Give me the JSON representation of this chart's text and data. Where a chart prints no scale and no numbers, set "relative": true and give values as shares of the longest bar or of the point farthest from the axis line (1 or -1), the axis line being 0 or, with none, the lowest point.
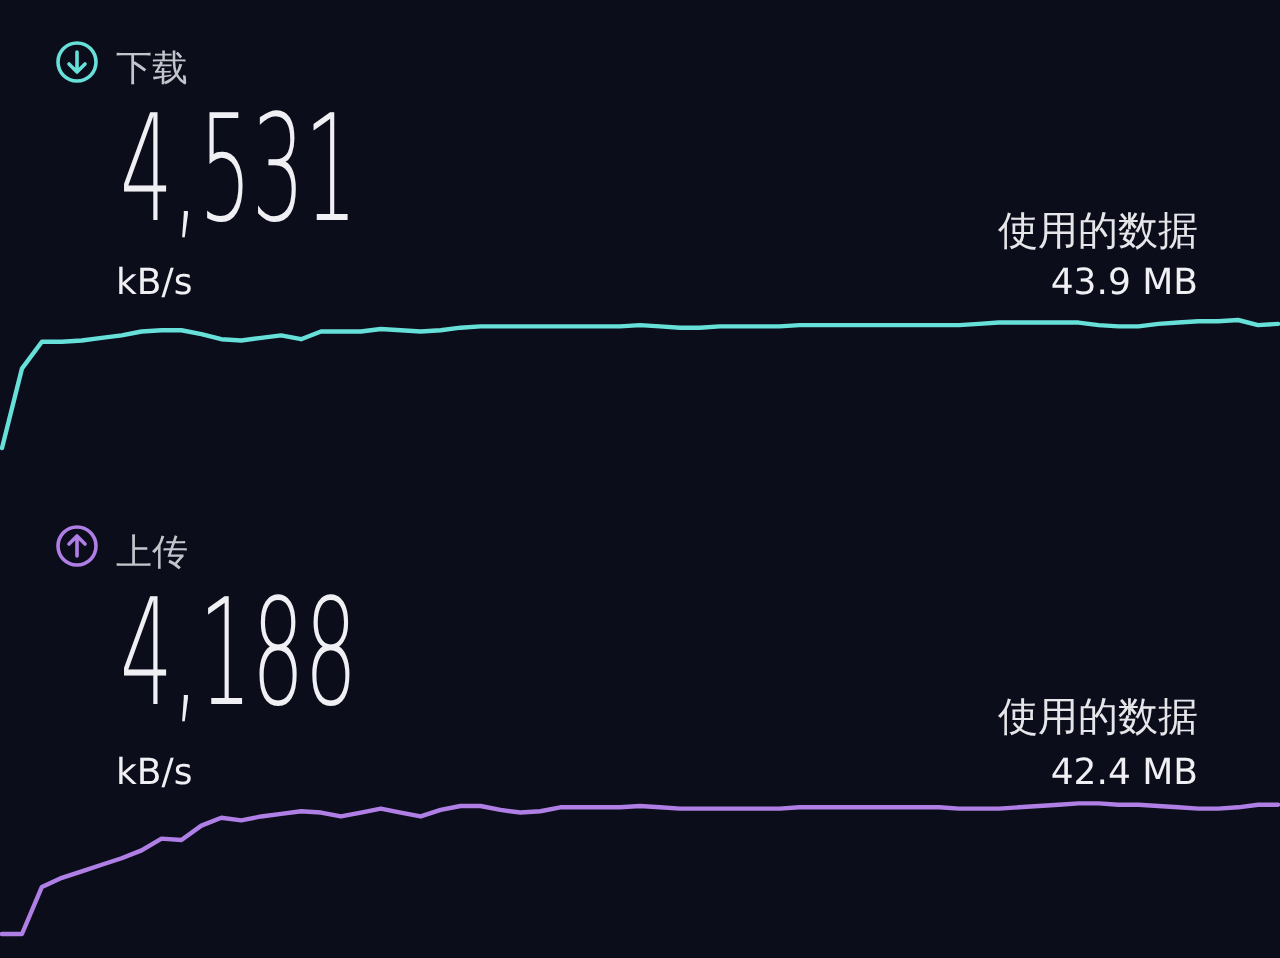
{
  "chart_data": [
    {
      "type": "line",
      "title": "下载",
      "annotations": [
        "4,531",
        "kB/s",
        "使用的数据",
        "43.9 MB"
      ],
      "relative": true,
      "color": "#66e0d8",
      "categories": [
        null,
        null,
        null,
        null,
        null,
        null,
        null,
        null,
        null,
        null,
        null,
        null,
        null,
        null,
        null,
        null,
        null,
        null,
        null,
        null,
        null,
        null,
        null,
        null,
        null,
        null,
        null,
        null,
        null,
        null,
        null,
        null,
        null,
        null,
        null,
        null,
        null,
        null,
        null,
        null,
        null,
        null,
        null,
        null,
        null,
        null,
        null,
        null,
        null,
        null,
        null,
        null,
        null,
        null,
        null,
        null,
        null,
        null,
        null,
        null,
        null,
        null,
        null,
        null,
        null
      ],
      "values": [
        0,
        0.62,
        0.83,
        0.83,
        0.84,
        0.86,
        0.88,
        0.91,
        0.92,
        0.92,
        0.89,
        0.85,
        0.84,
        0.86,
        0.88,
        0.85,
        0.91,
        0.91,
        0.91,
        0.93,
        0.92,
        0.91,
        0.92,
        0.94,
        0.95,
        0.95,
        0.95,
        0.95,
        0.95,
        0.95,
        0.95,
        0.95,
        0.96,
        0.95,
        0.94,
        0.94,
        0.95,
        0.95,
        0.95,
        0.95,
        0.96,
        0.96,
        0.96,
        0.96,
        0.96,
        0.96,
        0.96,
        0.96,
        0.96,
        0.97,
        0.98,
        0.98,
        0.98,
        0.98,
        0.98,
        0.96,
        0.95,
        0.95,
        0.97,
        0.98,
        0.99,
        0.99,
        1,
        0.96,
        0.97
      ]
    },
    {
      "type": "line",
      "title": "上传",
      "annotations": [
        "4,188",
        "kB/s",
        "使用的数据",
        "42.4 MB"
      ],
      "relative": true,
      "color": "#b07fe6",
      "categories": [
        null,
        null,
        null,
        null,
        null,
        null,
        null,
        null,
        null,
        null,
        null,
        null,
        null,
        null,
        null,
        null,
        null,
        null,
        null,
        null,
        null,
        null,
        null,
        null,
        null,
        null,
        null,
        null,
        null,
        null,
        null,
        null,
        null,
        null,
        null,
        null,
        null,
        null,
        null,
        null,
        null,
        null,
        null,
        null,
        null,
        null,
        null,
        null,
        null,
        null,
        null,
        null,
        null,
        null,
        null,
        null,
        null,
        null,
        null,
        null,
        null,
        null,
        null,
        null,
        null
      ],
      "values": [
        0,
        0,
        0.36,
        0.43,
        0.48,
        0.53,
        0.58,
        0.64,
        0.73,
        0.72,
        0.83,
        0.89,
        0.87,
        0.9,
        0.92,
        0.94,
        0.93,
        0.9,
        0.93,
        0.96,
        0.93,
        0.9,
        0.95,
        0.98,
        0.98,
        0.95,
        0.93,
        0.94,
        0.97,
        0.97,
        0.97,
        0.97,
        0.98,
        0.97,
        0.96,
        0.96,
        0.96,
        0.96,
        0.96,
        0.96,
        0.97,
        0.97,
        0.97,
        0.97,
        0.97,
        0.97,
        0.97,
        0.97,
        0.96,
        0.96,
        0.96,
        0.97,
        0.98,
        0.99,
        1,
        1,
        0.99,
        0.99,
        0.98,
        0.97,
        0.96,
        0.96,
        0.97,
        0.99,
        0.99
      ]
    }
  ]
}
